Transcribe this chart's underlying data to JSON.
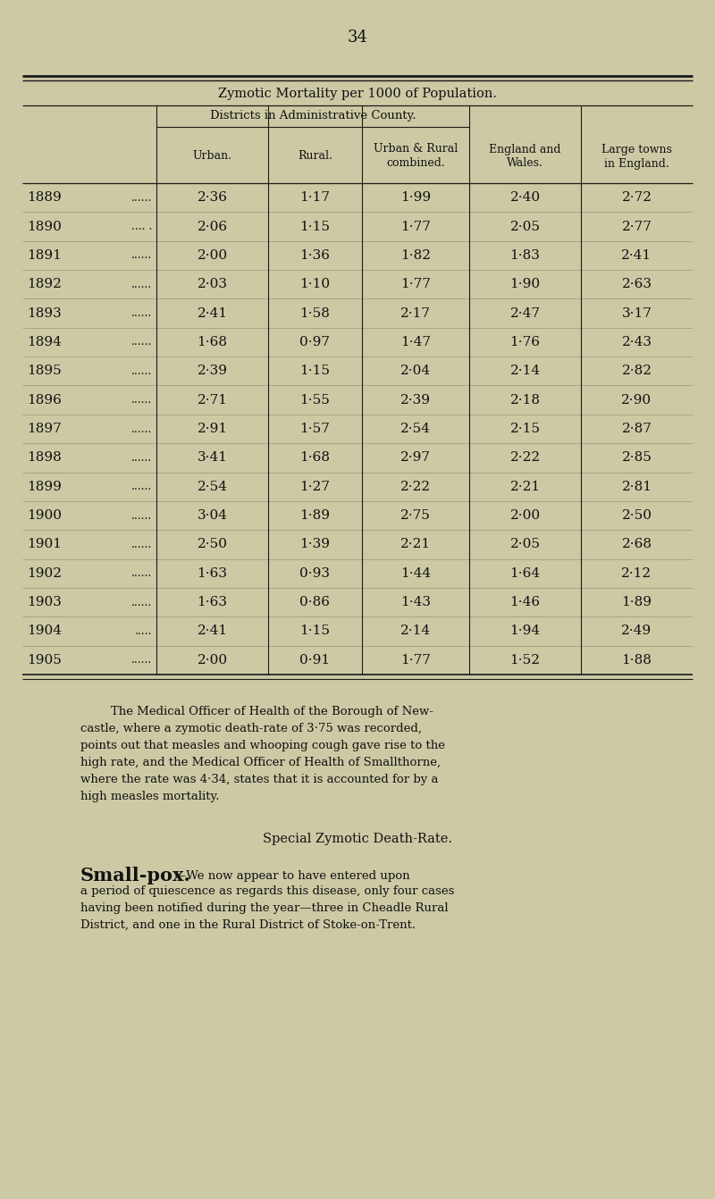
{
  "page_number": "34",
  "bg_color": "#cdc9a5",
  "table_title": "Zymotic Mortality per 1000 of Population.",
  "subheader": "Districts in Administrative County.",
  "col_headers": [
    "Urban.",
    "Rural.",
    "Urban & Rural\ncombined.",
    "England and\nWales.",
    "Large towns\nin England."
  ],
  "years": [
    "1889",
    "1890",
    "1891",
    "1892",
    "1893",
    "1894",
    "1895",
    "1896",
    "1897",
    "1898",
    "1899",
    "1900",
    "1901",
    "1902",
    "1903",
    "1904",
    "1905"
  ],
  "year_dots": [
    "......",
    ".... .",
    "......",
    "......",
    "......",
    "......",
    "......",
    "......",
    "......",
    "......",
    "......",
    "......",
    "......",
    "......",
    "......",
    ".....",
    "......"
  ],
  "data": [
    [
      "2·36",
      "1·17",
      "1·99",
      "2·40",
      "2·72"
    ],
    [
      "2·06",
      "1·15",
      "1·77",
      "2·05",
      "2·77"
    ],
    [
      "2·00",
      "1·36",
      "1·82",
      "1·83",
      "2·41"
    ],
    [
      "2·03",
      "1·10",
      "1·77",
      "1·90",
      "2·63"
    ],
    [
      "2·41",
      "1·58",
      "2·17",
      "2·47",
      "3·17"
    ],
    [
      "1·68",
      "0·97",
      "1·47",
      "1·76",
      "2·43"
    ],
    [
      "2·39",
      "1·15",
      "2·04",
      "2·14",
      "2·82"
    ],
    [
      "2·71",
      "1·55",
      "2·39",
      "2·18",
      "2·90"
    ],
    [
      "2·91",
      "1·57",
      "2·54",
      "2·15",
      "2·87"
    ],
    [
      "3·41",
      "1·68",
      "2·97",
      "2·22",
      "2·85"
    ],
    [
      "2·54",
      "1·27",
      "2·22",
      "2·21",
      "2·81"
    ],
    [
      "3·04",
      "1·89",
      "2·75",
      "2·00",
      "2·50"
    ],
    [
      "2·50",
      "1·39",
      "2·21",
      "2·05",
      "2·68"
    ],
    [
      "1·63",
      "0·93",
      "1·44",
      "1·64",
      "2·12"
    ],
    [
      "1·63",
      "0·86",
      "1·43",
      "1·46",
      "1·89"
    ],
    [
      "2·41",
      "1·15",
      "2·14",
      "1·94",
      "2·49"
    ],
    [
      "2·00",
      "0·91",
      "1·77",
      "1·52",
      "1·88"
    ]
  ],
  "para1_lines": [
    "        The Medical Officer of Health of the Borough of New-",
    "castle, where a zymotic death-rate of 3·75 was recorded,",
    "points out that measles and whooping cough gave rise to the",
    "high rate, and the Medical Officer of Health of Smallthorne,",
    "where the rate was 4·34, states that it is accounted for by a",
    "high measles mortality."
  ],
  "special_header": "Special Zymotic Death-Rate.",
  "smallpox_bold": "Small-pox.",
  "para2_lines": [
    "—We now appear to have entered upon",
    "a period of quiescence as regards this disease, only four cases",
    "having been notified during the year—three in Cheadle Rural",
    "District, and one in the Rural District of Stoke-on-Trent."
  ]
}
